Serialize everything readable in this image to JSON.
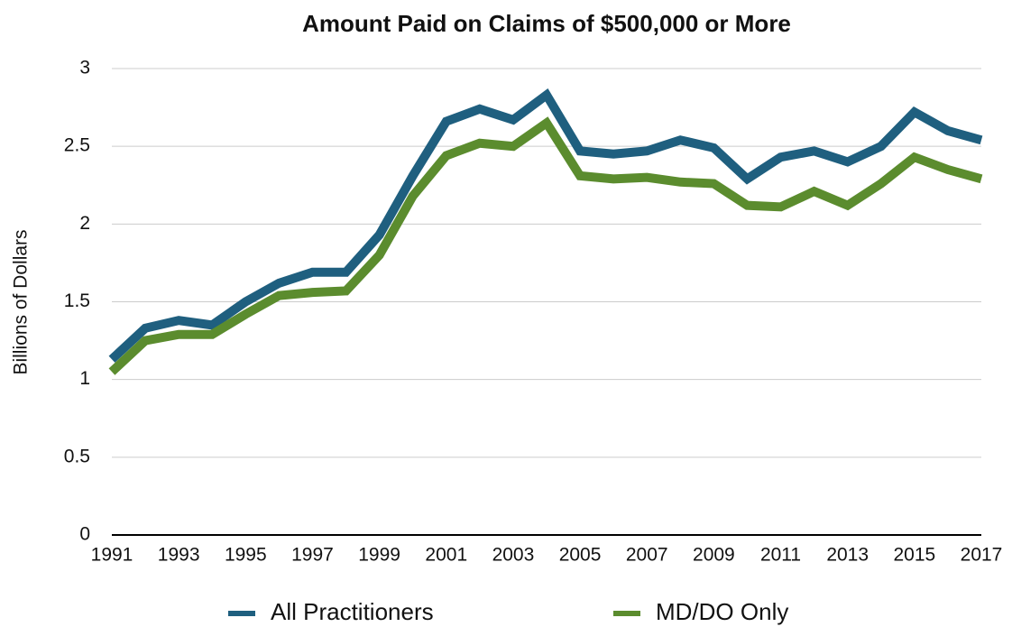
{
  "chart_data": {
    "type": "line",
    "title": "Amount Paid on Claims of $500,000 or More",
    "y_label": "Billions of Dollars",
    "x": [
      1991,
      1992,
      1993,
      1994,
      1995,
      1996,
      1997,
      1998,
      1999,
      2000,
      2001,
      2002,
      2003,
      2004,
      2005,
      2006,
      2007,
      2008,
      2009,
      2010,
      2011,
      2012,
      2013,
      2014,
      2015,
      2016,
      2017
    ],
    "xlim": [
      1991,
      2017
    ],
    "xticks": [
      1991,
      1993,
      1995,
      1997,
      1999,
      2001,
      2003,
      2005,
      2007,
      2009,
      2011,
      2013,
      2015,
      2017
    ],
    "ylim": [
      0,
      3
    ],
    "yticks": [
      0,
      0.5,
      1,
      1.5,
      2,
      2.5,
      3
    ],
    "grid": true,
    "legend": "bottom",
    "series": [
      {
        "name": "All Practitioners",
        "color": "#1f5f7f",
        "values": [
          1.13,
          1.33,
          1.38,
          1.35,
          1.5,
          1.62,
          1.69,
          1.69,
          1.93,
          2.31,
          2.66,
          2.74,
          2.67,
          2.83,
          2.47,
          2.45,
          2.47,
          2.54,
          2.49,
          2.29,
          2.43,
          2.47,
          2.4,
          2.5,
          2.72,
          2.6,
          2.54
        ]
      },
      {
        "name": "MD/DO Only",
        "color": "#5b8c2e",
        "values": [
          1.05,
          1.25,
          1.29,
          1.29,
          1.42,
          1.54,
          1.56,
          1.57,
          1.8,
          2.18,
          2.44,
          2.52,
          2.5,
          2.65,
          2.31,
          2.29,
          2.3,
          2.27,
          2.26,
          2.12,
          2.11,
          2.21,
          2.12,
          2.26,
          2.43,
          2.35,
          2.29
        ]
      }
    ]
  }
}
